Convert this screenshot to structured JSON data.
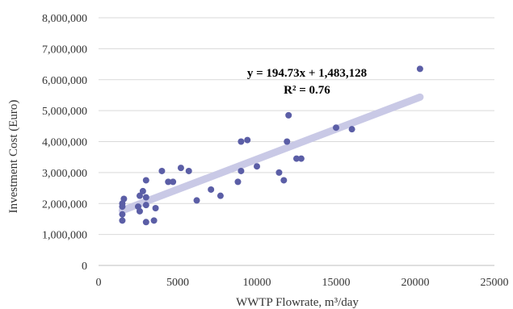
{
  "chart_data": {
    "type": "scatter",
    "title": "",
    "xlabel": "WWTP Flowrate, m³/day",
    "ylabel": "Investment Cost (Euro)",
    "xlim": [
      0,
      25000
    ],
    "ylim": [
      0,
      8000000
    ],
    "x_ticks": [
      0,
      5000,
      10000,
      15000,
      20000,
      25000
    ],
    "x_tick_labels": [
      "0",
      "5000",
      "10000",
      "15000",
      "20000",
      "25000"
    ],
    "y_ticks": [
      0,
      1000000,
      2000000,
      3000000,
      4000000,
      5000000,
      6000000,
      7000000,
      8000000
    ],
    "y_tick_labels": [
      "0",
      "1,000,000",
      "2,000,000",
      "3,000,000",
      "4,000,000",
      "5,000,000",
      "6,000,000",
      "7,000,000",
      "8,000,000"
    ],
    "grid": "horizontal",
    "point_color": "#5b5ea6",
    "trendline_color": "#c9c9e6",
    "points": [
      {
        "x": 1500,
        "y": 1450000
      },
      {
        "x": 1500,
        "y": 1650000
      },
      {
        "x": 1500,
        "y": 1900000
      },
      {
        "x": 1500,
        "y": 2000000
      },
      {
        "x": 1600,
        "y": 2150000
      },
      {
        "x": 2500,
        "y": 1900000
      },
      {
        "x": 2600,
        "y": 2250000
      },
      {
        "x": 2600,
        "y": 1750000
      },
      {
        "x": 2800,
        "y": 2400000
      },
      {
        "x": 3000,
        "y": 1400000
      },
      {
        "x": 3000,
        "y": 1950000
      },
      {
        "x": 3000,
        "y": 2200000
      },
      {
        "x": 3000,
        "y": 2750000
      },
      {
        "x": 3500,
        "y": 1450000
      },
      {
        "x": 3600,
        "y": 1850000
      },
      {
        "x": 4000,
        "y": 3050000
      },
      {
        "x": 4400,
        "y": 2700000
      },
      {
        "x": 4700,
        "y": 2700000
      },
      {
        "x": 5200,
        "y": 3150000
      },
      {
        "x": 5700,
        "y": 3050000
      },
      {
        "x": 6200,
        "y": 2100000
      },
      {
        "x": 7100,
        "y": 2450000
      },
      {
        "x": 7700,
        "y": 2250000
      },
      {
        "x": 8800,
        "y": 2700000
      },
      {
        "x": 9000,
        "y": 3050000
      },
      {
        "x": 9000,
        "y": 4000000
      },
      {
        "x": 9400,
        "y": 4050000
      },
      {
        "x": 10000,
        "y": 3200000
      },
      {
        "x": 11400,
        "y": 3000000
      },
      {
        "x": 11700,
        "y": 2750000
      },
      {
        "x": 11900,
        "y": 4000000
      },
      {
        "x": 12000,
        "y": 4850000
      },
      {
        "x": 12500,
        "y": 3450000
      },
      {
        "x": 12800,
        "y": 3450000
      },
      {
        "x": 15000,
        "y": 4450000
      },
      {
        "x": 16000,
        "y": 4400000
      },
      {
        "x": 20300,
        "y": 6350000
      }
    ],
    "trendline": {
      "slope": 194.73,
      "intercept": 1483128,
      "x_range": [
        1500,
        20300
      ],
      "equation": "y = 194.73x + 1,483,128",
      "r_squared": "R² = 0.76"
    }
  }
}
